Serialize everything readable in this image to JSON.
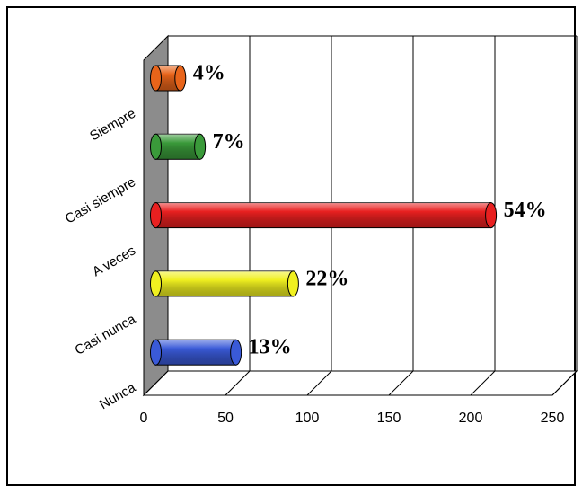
{
  "chart_data": {
    "type": "bar3d_horizontal",
    "categories": [
      "Siempre",
      "Casi siempre",
      "A veces",
      "Casi nunca",
      "Nunca"
    ],
    "values": [
      15,
      27,
      205,
      84,
      49
    ],
    "percent_labels": [
      "4%",
      "7%",
      "54%",
      "22%",
      "13%"
    ],
    "colors": [
      "#e8641a",
      "#3a9a3a",
      "#e82020",
      "#f0f020",
      "#3a5ad8"
    ],
    "xlim": [
      0,
      250
    ],
    "xticks": [
      0,
      50,
      100,
      150,
      200,
      250
    ],
    "grid": true
  }
}
